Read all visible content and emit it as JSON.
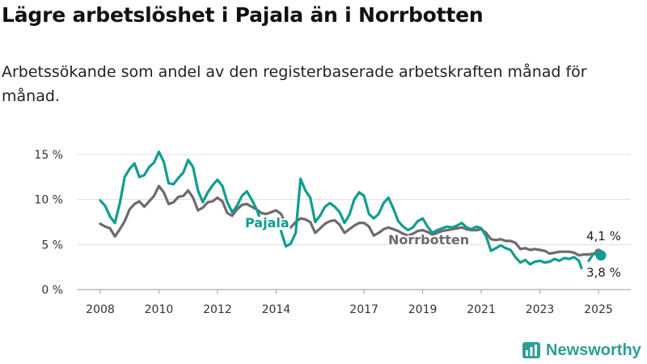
{
  "title": "Lägre arbetslöshet i Pajala än i Norrbotten",
  "subtitle": "Arbetssökande som andel av den registerbaserade arbetskraften månad för månad.",
  "brand": {
    "name": "Newsworthy",
    "color": "#2e9e94"
  },
  "chart_data": {
    "type": "line",
    "x_ticks": [
      "2008",
      "2010",
      "2012",
      "2014",
      "2017",
      "2019",
      "2021",
      "2023",
      "2025"
    ],
    "y_ticks": [
      "0 %",
      "5 %",
      "10 %",
      "15 %"
    ],
    "ylim": [
      0,
      15
    ],
    "grid": "horizontal",
    "xlabel": "",
    "ylabel": "",
    "series": [
      {
        "name": "Pajala",
        "color": "#0f9d8f",
        "end_label": "3,8 %",
        "points": [
          [
            "2008-01",
            9.9
          ],
          [
            "2008-03",
            9.3
          ],
          [
            "2008-05",
            8.1
          ],
          [
            "2008-07",
            7.4
          ],
          [
            "2008-09",
            9.6
          ],
          [
            "2008-11",
            12.5
          ],
          [
            "2009-01",
            13.4
          ],
          [
            "2009-03",
            14.0
          ],
          [
            "2009-05",
            12.5
          ],
          [
            "2009-07",
            12.7
          ],
          [
            "2009-09",
            13.6
          ],
          [
            "2009-11",
            14.1
          ],
          [
            "2010-01",
            15.3
          ],
          [
            "2010-03",
            14.2
          ],
          [
            "2010-05",
            11.8
          ],
          [
            "2010-07",
            11.7
          ],
          [
            "2010-09",
            12.4
          ],
          [
            "2010-11",
            13.0
          ],
          [
            "2011-01",
            14.4
          ],
          [
            "2011-03",
            13.6
          ],
          [
            "2011-05",
            11.0
          ],
          [
            "2011-07",
            9.7
          ],
          [
            "2011-09",
            10.8
          ],
          [
            "2011-11",
            11.6
          ],
          [
            "2012-01",
            12.2
          ],
          [
            "2012-03",
            11.5
          ],
          [
            "2012-05",
            9.7
          ],
          [
            "2012-07",
            8.6
          ],
          [
            "2012-09",
            9.3
          ],
          [
            "2012-11",
            10.4
          ],
          [
            "2013-01",
            10.9
          ],
          [
            "2013-03",
            10.0
          ],
          [
            "2013-05",
            8.9
          ],
          [
            "2013-06",
            8.2
          ],
          [
            null,
            null
          ],
          [
            "2014-03",
            6.5
          ],
          [
            "2014-05",
            4.8
          ],
          [
            "2014-07",
            5.1
          ],
          [
            "2014-09",
            6.3
          ],
          [
            "2014-11",
            12.3
          ],
          [
            "2015-01",
            11.0
          ],
          [
            "2015-03",
            10.2
          ],
          [
            "2015-05",
            7.5
          ],
          [
            "2015-07",
            8.2
          ],
          [
            "2015-09",
            9.2
          ],
          [
            "2015-11",
            9.6
          ],
          [
            "2016-01",
            9.2
          ],
          [
            "2016-03",
            8.6
          ],
          [
            "2016-05",
            7.4
          ],
          [
            "2016-07",
            8.3
          ],
          [
            "2016-09",
            10.0
          ],
          [
            "2016-11",
            10.8
          ],
          [
            "2017-01",
            10.4
          ],
          [
            "2017-03",
            8.4
          ],
          [
            "2017-05",
            7.9
          ],
          [
            "2017-07",
            8.4
          ],
          [
            "2017-09",
            9.6
          ],
          [
            "2017-11",
            10.2
          ],
          [
            "2018-01",
            9.0
          ],
          [
            "2018-03",
            7.6
          ],
          [
            "2018-05",
            7.0
          ],
          [
            "2018-07",
            6.6
          ],
          [
            "2018-09",
            6.9
          ],
          [
            "2018-11",
            7.6
          ],
          [
            "2019-01",
            7.9
          ],
          [
            "2019-03",
            7.0
          ],
          [
            "2019-05",
            6.3
          ],
          [
            "2019-07",
            6.6
          ],
          [
            "2019-09",
            6.8
          ],
          [
            "2019-11",
            7.0
          ],
          [
            "2020-01",
            6.9
          ],
          [
            "2020-03",
            7.1
          ],
          [
            "2020-05",
            7.4
          ],
          [
            "2020-07",
            6.9
          ],
          [
            "2020-09",
            6.7
          ],
          [
            "2020-11",
            7.0
          ],
          [
            "2021-01",
            6.8
          ],
          [
            "2021-03",
            5.9
          ],
          [
            "2021-05",
            4.3
          ],
          [
            "2021-07",
            4.6
          ],
          [
            "2021-09",
            4.9
          ],
          [
            "2021-11",
            4.6
          ],
          [
            "2022-01",
            4.4
          ],
          [
            "2022-03",
            3.6
          ],
          [
            "2022-05",
            3.0
          ],
          [
            "2022-07",
            3.3
          ],
          [
            "2022-09",
            2.8
          ],
          [
            "2022-11",
            3.1
          ],
          [
            "2023-01",
            3.2
          ],
          [
            "2023-03",
            3.0
          ],
          [
            "2023-05",
            3.1
          ],
          [
            "2023-07",
            3.4
          ],
          [
            "2023-09",
            3.2
          ],
          [
            "2023-11",
            3.5
          ],
          [
            "2024-01",
            3.4
          ],
          [
            "2024-03",
            3.6
          ],
          [
            "2024-05",
            3.2
          ],
          [
            "2024-06",
            2.4
          ],
          [
            null,
            null
          ],
          [
            "2024-09",
            3.2
          ],
          [
            "2024-11",
            4.0
          ],
          [
            "2025-01",
            3.8
          ]
        ]
      },
      {
        "name": "Norrbotten",
        "color": "#6e6a6f",
        "end_label": "4,1 %",
        "points": [
          [
            "2008-01",
            7.3
          ],
          [
            "2008-03",
            7.0
          ],
          [
            "2008-05",
            6.8
          ],
          [
            "2008-07",
            5.9
          ],
          [
            "2008-09",
            6.7
          ],
          [
            "2008-11",
            7.6
          ],
          [
            "2009-01",
            8.9
          ],
          [
            "2009-03",
            9.5
          ],
          [
            "2009-05",
            9.8
          ],
          [
            "2009-07",
            9.2
          ],
          [
            "2009-09",
            9.8
          ],
          [
            "2009-11",
            10.4
          ],
          [
            "2010-01",
            11.5
          ],
          [
            "2010-03",
            10.8
          ],
          [
            "2010-05",
            9.5
          ],
          [
            "2010-07",
            9.7
          ],
          [
            "2010-09",
            10.3
          ],
          [
            "2010-11",
            10.4
          ],
          [
            "2011-01",
            11.0
          ],
          [
            "2011-03",
            10.2
          ],
          [
            "2011-05",
            8.8
          ],
          [
            "2011-07",
            9.1
          ],
          [
            "2011-09",
            9.7
          ],
          [
            "2011-11",
            9.8
          ],
          [
            "2012-01",
            10.2
          ],
          [
            "2012-03",
            9.8
          ],
          [
            "2012-05",
            8.5
          ],
          [
            "2012-07",
            8.2
          ],
          [
            "2012-09",
            8.9
          ],
          [
            "2012-11",
            9.4
          ],
          [
            "2013-01",
            9.5
          ],
          [
            "2013-03",
            9.2
          ],
          [
            "2013-05",
            8.9
          ],
          [
            "2013-07",
            8.5
          ],
          [
            "2013-09",
            8.4
          ],
          [
            "2013-11",
            8.6
          ],
          [
            "2014-01",
            8.8
          ],
          [
            "2014-03",
            8.4
          ],
          [
            "2014-05",
            7.2
          ],
          [
            "2014-07",
            6.9
          ],
          [
            "2014-09",
            7.5
          ],
          [
            "2014-11",
            7.9
          ],
          [
            "2015-01",
            7.8
          ],
          [
            "2015-03",
            7.5
          ],
          [
            "2015-05",
            6.3
          ],
          [
            "2015-07",
            6.8
          ],
          [
            "2015-09",
            7.3
          ],
          [
            "2015-11",
            7.6
          ],
          [
            "2016-01",
            7.7
          ],
          [
            "2016-03",
            7.2
          ],
          [
            "2016-05",
            6.3
          ],
          [
            "2016-07",
            6.7
          ],
          [
            "2016-09",
            7.1
          ],
          [
            "2016-11",
            7.4
          ],
          [
            "2017-01",
            7.4
          ],
          [
            "2017-03",
            7.0
          ],
          [
            "2017-05",
            6.0
          ],
          [
            "2017-07",
            6.3
          ],
          [
            "2017-09",
            6.7
          ],
          [
            "2017-11",
            6.9
          ],
          [
            "2018-01",
            6.7
          ],
          [
            "2018-03",
            6.5
          ],
          [
            "2018-05",
            6.2
          ],
          [
            "2018-07",
            6.0
          ],
          [
            "2018-09",
            6.2
          ],
          [
            "2018-11",
            6.5
          ],
          [
            "2019-01",
            6.6
          ],
          [
            "2019-03",
            6.4
          ],
          [
            "2019-05",
            6.1
          ],
          [
            "2019-07",
            6.3
          ],
          [
            "2019-09",
            6.5
          ],
          [
            "2019-11",
            6.6
          ],
          [
            "2020-01",
            6.7
          ],
          [
            "2020-03",
            6.8
          ],
          [
            "2020-05",
            6.9
          ],
          [
            "2020-07",
            6.7
          ],
          [
            "2020-09",
            6.6
          ],
          [
            "2020-11",
            6.6
          ],
          [
            "2021-01",
            6.7
          ],
          [
            "2021-03",
            6.3
          ],
          [
            "2021-05",
            5.6
          ],
          [
            "2021-07",
            5.5
          ],
          [
            "2021-09",
            5.6
          ],
          [
            "2021-11",
            5.4
          ],
          [
            "2022-01",
            5.4
          ],
          [
            "2022-03",
            5.2
          ],
          [
            "2022-05",
            4.5
          ],
          [
            "2022-07",
            4.6
          ],
          [
            "2022-09",
            4.4
          ],
          [
            "2022-11",
            4.5
          ],
          [
            "2023-01",
            4.4
          ],
          [
            "2023-03",
            4.3
          ],
          [
            "2023-05",
            4.0
          ],
          [
            "2023-07",
            4.1
          ],
          [
            "2023-09",
            4.2
          ],
          [
            "2023-11",
            4.2
          ],
          [
            "2024-01",
            4.2
          ],
          [
            "2024-03",
            4.1
          ],
          [
            "2024-05",
            3.8
          ],
          [
            "2024-07",
            3.9
          ],
          [
            "2024-09",
            3.9
          ],
          [
            "2024-11",
            4.0
          ],
          [
            "2025-01",
            4.1
          ]
        ]
      }
    ]
  }
}
